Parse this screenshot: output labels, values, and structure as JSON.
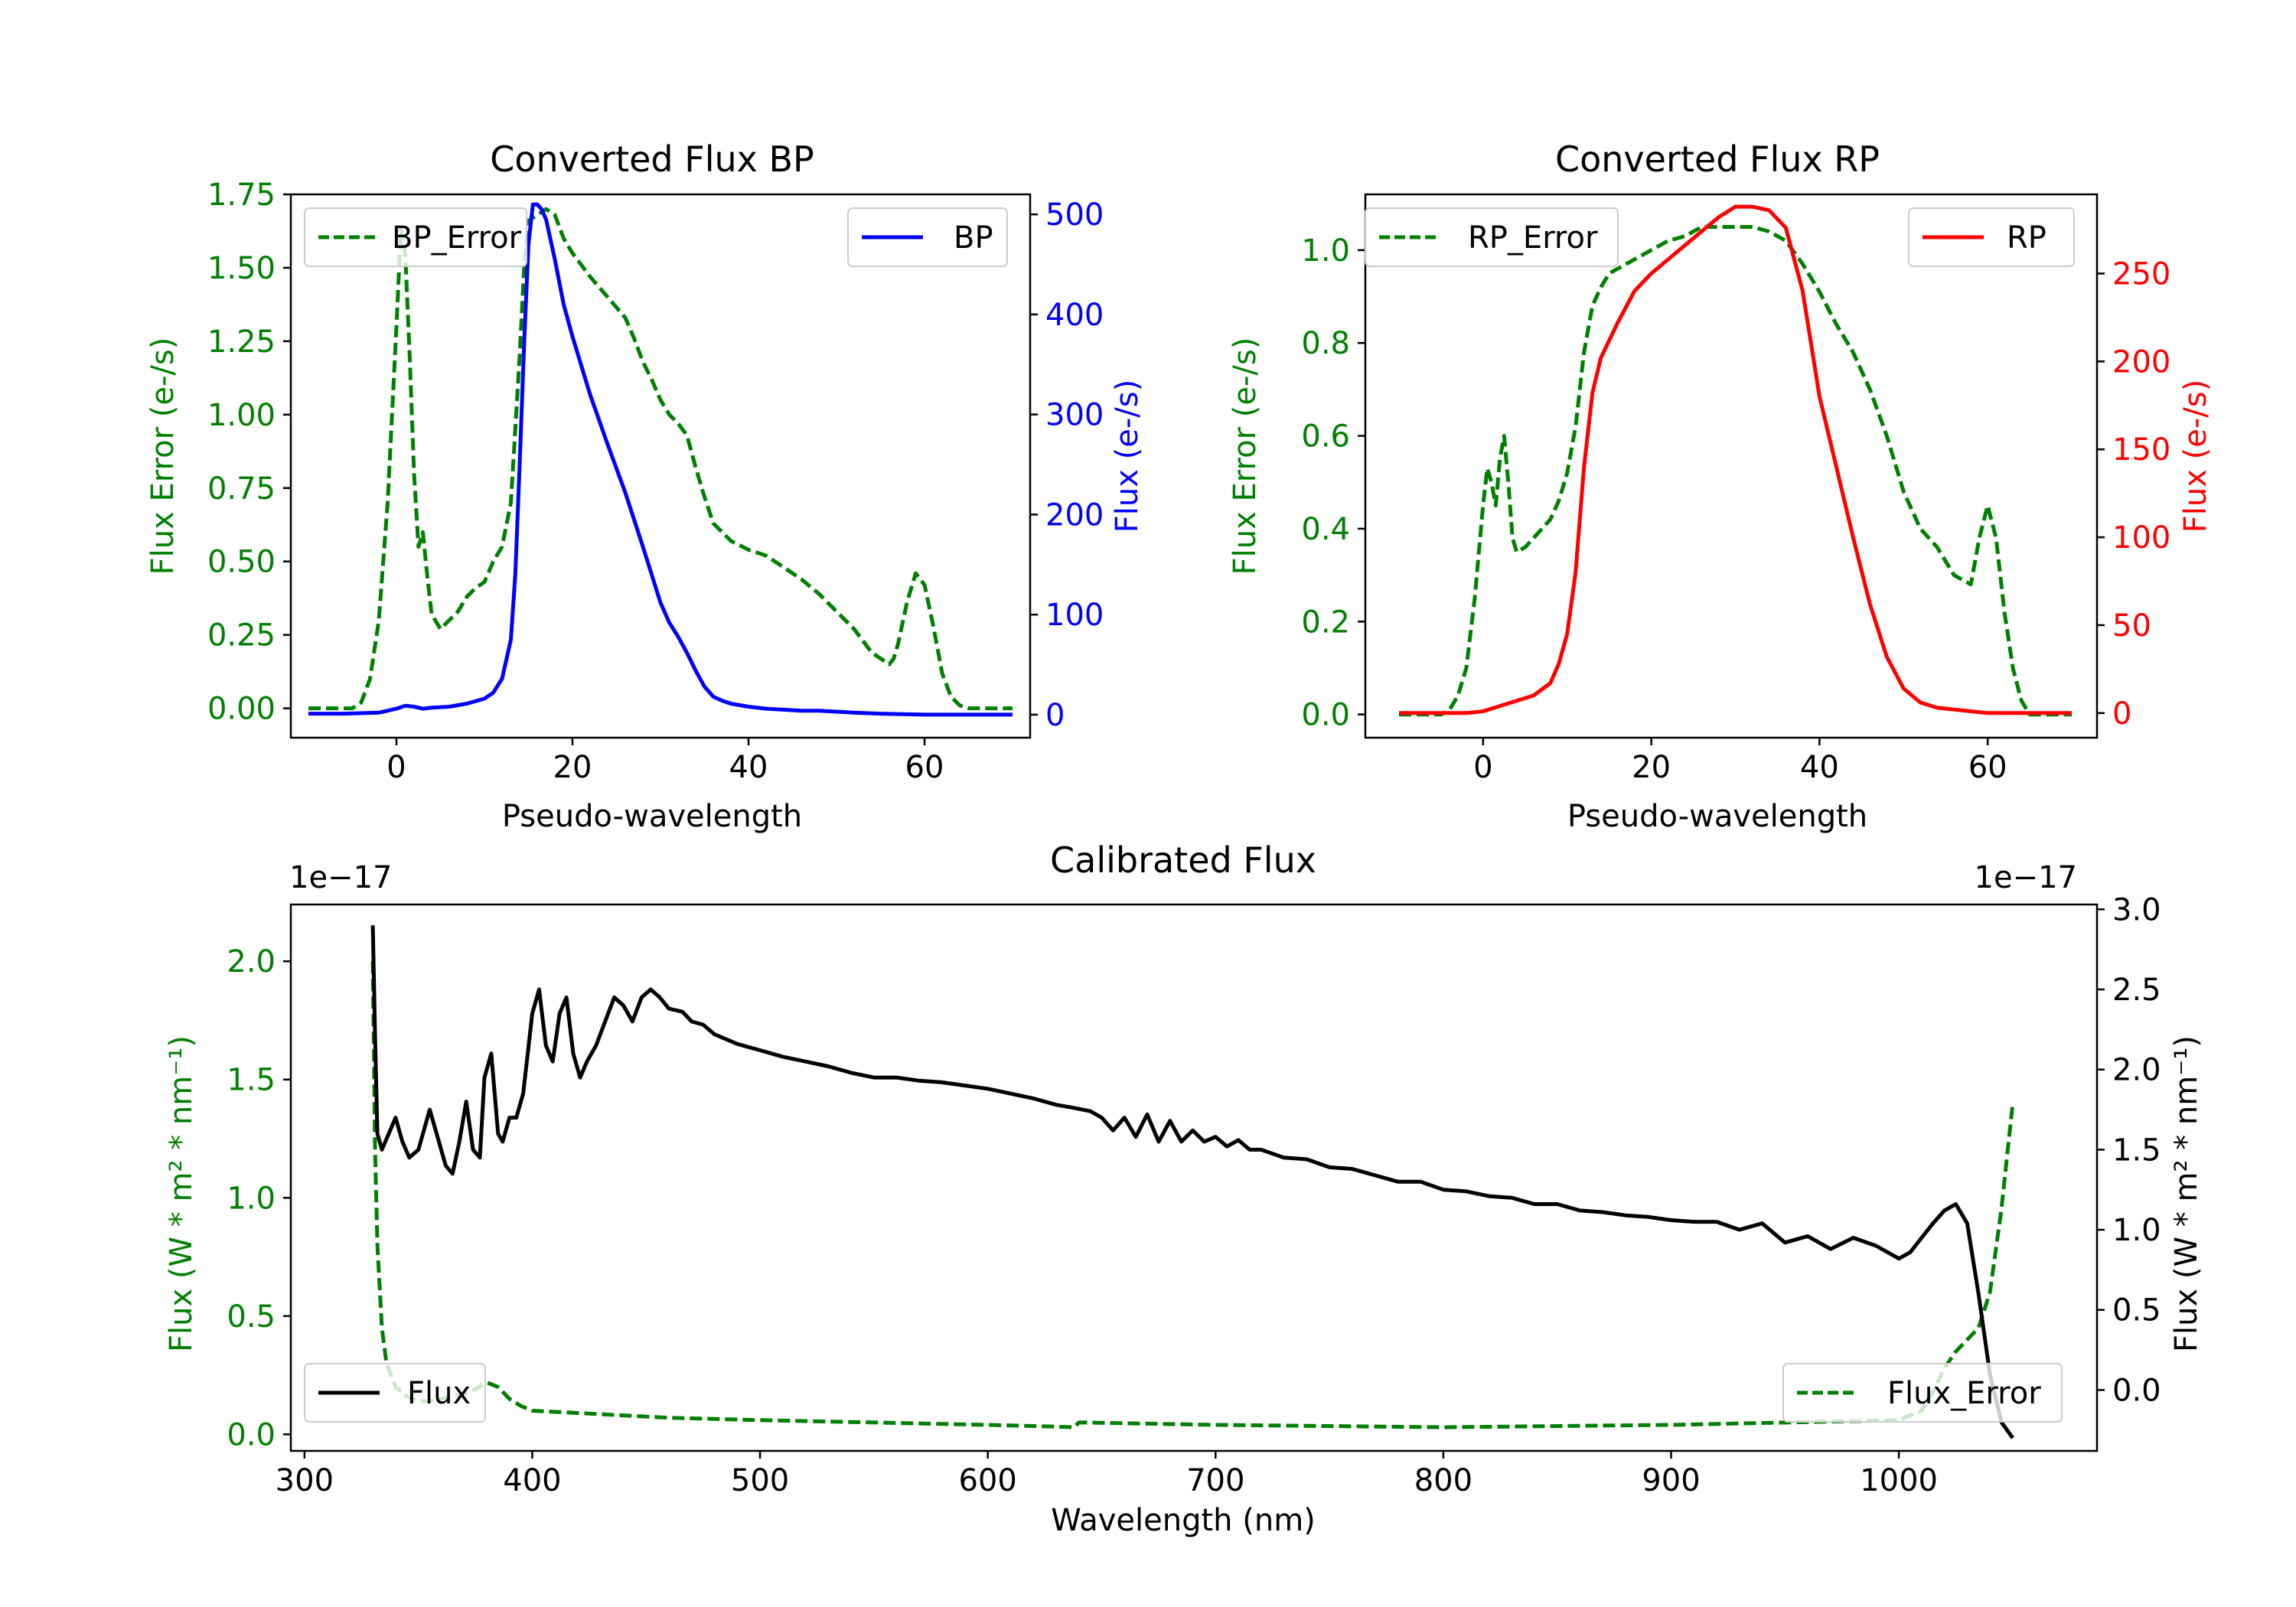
{
  "colors": {
    "green": "#008000",
    "blue": "#0000ff",
    "red": "#ff0000",
    "black": "#000000",
    "axis": "#000000"
  },
  "chart_data": [
    {
      "id": "bp",
      "type": "line",
      "title": "Converted Flux BP",
      "xlabel": "Pseudo-wavelength",
      "ylabel_left": "Flux Error (e-/s)",
      "ylabel_right": "Flux (e-/s)",
      "xlim": [
        -12,
        72
      ],
      "ylim_left": [
        -0.1,
        1.75
      ],
      "ylim_right": [
        -23,
        520
      ],
      "xticks": [
        0,
        20,
        40,
        60
      ],
      "yticks_left": [
        0.0,
        0.25,
        0.5,
        0.75,
        1.0,
        1.25,
        1.5,
        1.75
      ],
      "yticks_left_labels": [
        "0.00",
        "0.25",
        "0.50",
        "0.75",
        "1.00",
        "1.25",
        "1.50",
        "1.75"
      ],
      "yticks_right": [
        0,
        100,
        200,
        300,
        400,
        500
      ],
      "legend_left": "BP_Error",
      "legend_right": "BP",
      "series": [
        {
          "name": "BP_Error",
          "axis": "left",
          "color": "green",
          "dash": true,
          "x": [
            -10,
            -5,
            -4,
            -3,
            -2,
            -1,
            0,
            0.5,
            1,
            1.5,
            2,
            2.5,
            3,
            3.5,
            4,
            5,
            6,
            7,
            8,
            9,
            10,
            11,
            12,
            13,
            13.5,
            14,
            14.5,
            15,
            16,
            17,
            18,
            19,
            20,
            22,
            24,
            26,
            27,
            28,
            29,
            30,
            31,
            32,
            33,
            34,
            35,
            36,
            38,
            40,
            42,
            44,
            46,
            48,
            50,
            52,
            54,
            55,
            56,
            56.5,
            57,
            58,
            59,
            60,
            61,
            62,
            63,
            64,
            65,
            70
          ],
          "y": [
            0,
            0,
            0.02,
            0.1,
            0.3,
            0.7,
            1.3,
            1.63,
            1.55,
            1.2,
            0.8,
            0.55,
            0.6,
            0.45,
            0.32,
            0.27,
            0.3,
            0.33,
            0.38,
            0.41,
            0.43,
            0.5,
            0.55,
            0.7,
            0.95,
            1.2,
            1.5,
            1.66,
            1.68,
            1.7,
            1.68,
            1.6,
            1.55,
            1.47,
            1.4,
            1.33,
            1.26,
            1.18,
            1.12,
            1.05,
            1.0,
            0.97,
            0.93,
            0.82,
            0.72,
            0.63,
            0.57,
            0.54,
            0.52,
            0.48,
            0.44,
            0.39,
            0.33,
            0.27,
            0.19,
            0.17,
            0.15,
            0.17,
            0.22,
            0.36,
            0.46,
            0.42,
            0.28,
            0.12,
            0.04,
            0.01,
            0,
            0
          ]
        },
        {
          "name": "BP",
          "axis": "right",
          "color": "blue",
          "dash": false,
          "x": [
            -10,
            -6,
            -2,
            0,
            1,
            2,
            3,
            4,
            6,
            8,
            10,
            11,
            12,
            13,
            13.5,
            14,
            14.5,
            15,
            15.5,
            16,
            16.5,
            17,
            18,
            19,
            20,
            22,
            24,
            26,
            28,
            30,
            31,
            32,
            33,
            34,
            35,
            36,
            37,
            38,
            40,
            42,
            44,
            46,
            48,
            50,
            52,
            55,
            60,
            65,
            70
          ],
          "y": [
            1,
            1,
            2,
            6,
            9,
            8,
            6,
            7,
            8,
            11,
            16,
            22,
            36,
            75,
            140,
            250,
            370,
            470,
            510,
            510,
            505,
            495,
            455,
            410,
            378,
            320,
            270,
            222,
            168,
            112,
            92,
            78,
            62,
            44,
            28,
            18,
            14,
            11,
            8,
            6,
            5,
            4,
            4,
            3,
            2,
            1,
            0,
            0,
            0
          ]
        }
      ]
    },
    {
      "id": "rp",
      "type": "line",
      "title": "Converted Flux RP",
      "xlabel": "Pseudo-wavelength",
      "ylabel_left": "Flux Error (e-/s)",
      "ylabel_right": "Flux (e-/s)",
      "xlim": [
        -14,
        73
      ],
      "ylim_left": [
        -0.05,
        1.12
      ],
      "ylim_right": [
        -14,
        295
      ],
      "xticks": [
        0,
        20,
        40,
        60
      ],
      "yticks_left": [
        0.0,
        0.2,
        0.4,
        0.6,
        0.8,
        1.0
      ],
      "yticks_left_labels": [
        "0.0",
        "0.2",
        "0.4",
        "0.6",
        "0.8",
        "1.0"
      ],
      "yticks_right": [
        0,
        50,
        100,
        150,
        200,
        250
      ],
      "legend_left": "RP_Error",
      "legend_right": "RP",
      "series": [
        {
          "name": "RP_Error",
          "axis": "left",
          "color": "green",
          "dash": true,
          "x": [
            -10,
            -5,
            -4,
            -3,
            -2,
            -1,
            0,
            0.5,
            1,
            1.5,
            2,
            2.5,
            3,
            3.5,
            4,
            5,
            6,
            7,
            8,
            9,
            10,
            11,
            12,
            13,
            14,
            15,
            16,
            18,
            20,
            22,
            24,
            26,
            28,
            30,
            32,
            34,
            36,
            38,
            40,
            42,
            44,
            46,
            48,
            50,
            52,
            54,
            55,
            56,
            57,
            58,
            59,
            60,
            61,
            62,
            63,
            64,
            65,
            70
          ],
          "y": [
            0,
            0,
            0.01,
            0.04,
            0.1,
            0.25,
            0.45,
            0.53,
            0.5,
            0.45,
            0.55,
            0.6,
            0.5,
            0.38,
            0.35,
            0.36,
            0.38,
            0.4,
            0.42,
            0.46,
            0.52,
            0.62,
            0.78,
            0.88,
            0.92,
            0.95,
            0.96,
            0.98,
            1.0,
            1.02,
            1.03,
            1.05,
            1.05,
            1.05,
            1.05,
            1.04,
            1.02,
            0.97,
            0.91,
            0.84,
            0.78,
            0.7,
            0.6,
            0.48,
            0.4,
            0.36,
            0.33,
            0.3,
            0.29,
            0.28,
            0.38,
            0.45,
            0.38,
            0.22,
            0.1,
            0.03,
            0,
            0
          ]
        },
        {
          "name": "RP",
          "axis": "right",
          "color": "red",
          "dash": false,
          "x": [
            -10,
            -6,
            -2,
            0,
            2,
            4,
            6,
            8,
            9,
            10,
            11,
            12,
            13,
            14,
            15,
            16,
            18,
            20,
            22,
            24,
            26,
            28,
            30,
            32,
            34,
            36,
            38,
            40,
            42,
            44,
            46,
            48,
            50,
            52,
            54,
            56,
            58,
            60,
            62,
            64,
            66,
            70
          ],
          "y": [
            0,
            0,
            0,
            1,
            4,
            7,
            10,
            17,
            28,
            45,
            80,
            140,
            182,
            202,
            212,
            222,
            240,
            250,
            258,
            266,
            274,
            282,
            288,
            288,
            286,
            276,
            240,
            180,
            140,
            100,
            62,
            32,
            14,
            6,
            3,
            2,
            1,
            0,
            0,
            0,
            0,
            0
          ]
        }
      ]
    },
    {
      "id": "cal",
      "type": "line",
      "title": "Calibrated Flux",
      "xlabel": "Wavelength (nm)",
      "ylabel_left": "Flux (W * m² * nm⁻¹)",
      "ylabel_right": "Flux (W * m² * nm⁻¹)",
      "offset_left": "1e−17",
      "offset_right": "1e−17",
      "xlim": [
        294,
        1087
      ],
      "ylim_left": [
        -0.07,
        2.24
      ],
      "ylim_right": [
        -0.38,
        3.03
      ],
      "xticks": [
        300,
        400,
        500,
        600,
        700,
        800,
        900,
        1000
      ],
      "yticks_left": [
        0.0,
        0.5,
        1.0,
        1.5,
        2.0
      ],
      "yticks_left_labels": [
        "0.0",
        "0.5",
        "1.0",
        "1.5",
        "2.0"
      ],
      "yticks_right": [
        0.0,
        0.5,
        1.0,
        1.5,
        2.0,
        2.5,
        3.0
      ],
      "yticks_right_labels": [
        "0.0",
        "0.5",
        "1.0",
        "1.5",
        "2.0",
        "2.5",
        "3.0"
      ],
      "legend_left": "Flux",
      "legend_right": "Flux_Error",
      "series": [
        {
          "name": "Flux_Error",
          "axis": "left",
          "color": "green",
          "dash": true,
          "x": [
            330,
            331,
            332,
            334,
            336,
            340,
            345,
            350,
            355,
            360,
            365,
            370,
            375,
            380,
            385,
            390,
            395,
            400,
            420,
            440,
            460,
            500,
            550,
            600,
            620,
            638,
            640,
            642,
            700,
            800,
            900,
            1000,
            1010,
            1015,
            1020,
            1025,
            1030,
            1035,
            1040,
            1045,
            1050
          ],
          "y": [
            2.0,
            1.2,
            0.8,
            0.45,
            0.3,
            0.2,
            0.16,
            0.14,
            0.14,
            0.15,
            0.16,
            0.17,
            0.19,
            0.22,
            0.2,
            0.15,
            0.12,
            0.1,
            0.09,
            0.08,
            0.07,
            0.06,
            0.05,
            0.04,
            0.035,
            0.03,
            0.05,
            0.05,
            0.04,
            0.03,
            0.04,
            0.06,
            0.1,
            0.18,
            0.28,
            0.35,
            0.4,
            0.45,
            0.6,
            0.95,
            1.4
          ]
        },
        {
          "name": "Flux",
          "axis": "right",
          "color": "black",
          "dash": false,
          "x": [
            330,
            331,
            332,
            334,
            337,
            340,
            343,
            346,
            350,
            355,
            358,
            362,
            365,
            368,
            371,
            374,
            377,
            379,
            382,
            385,
            387,
            390,
            393,
            396,
            400,
            403,
            406,
            409,
            412,
            415,
            418,
            421,
            424,
            428,
            432,
            436,
            440,
            444,
            448,
            452,
            456,
            460,
            466,
            470,
            475,
            480,
            490,
            500,
            510,
            520,
            530,
            540,
            550,
            560,
            570,
            580,
            590,
            600,
            610,
            620,
            630,
            638,
            645,
            650,
            655,
            660,
            665,
            670,
            675,
            680,
            685,
            690,
            695,
            700,
            705,
            710,
            715,
            720,
            730,
            740,
            750,
            760,
            770,
            780,
            790,
            800,
            810,
            820,
            830,
            840,
            850,
            860,
            870,
            880,
            890,
            900,
            910,
            920,
            930,
            940,
            950,
            960,
            970,
            980,
            990,
            1000,
            1005,
            1010,
            1015,
            1020,
            1025,
            1030,
            1035,
            1040,
            1045,
            1050
          ],
          "y": [
            2.9,
            2.2,
            1.6,
            1.5,
            1.6,
            1.7,
            1.55,
            1.45,
            1.5,
            1.75,
            1.6,
            1.4,
            1.35,
            1.55,
            1.8,
            1.5,
            1.45,
            1.95,
            2.1,
            1.6,
            1.55,
            1.7,
            1.7,
            1.85,
            2.35,
            2.5,
            2.15,
            2.05,
            2.35,
            2.45,
            2.1,
            1.95,
            2.05,
            2.15,
            2.3,
            2.45,
            2.4,
            2.3,
            2.45,
            2.5,
            2.45,
            2.38,
            2.36,
            2.3,
            2.28,
            2.22,
            2.16,
            2.12,
            2.08,
            2.05,
            2.02,
            1.98,
            1.95,
            1.95,
            1.93,
            1.92,
            1.9,
            1.88,
            1.85,
            1.82,
            1.78,
            1.76,
            1.74,
            1.7,
            1.62,
            1.7,
            1.58,
            1.72,
            1.55,
            1.68,
            1.55,
            1.62,
            1.55,
            1.58,
            1.52,
            1.56,
            1.5,
            1.5,
            1.45,
            1.44,
            1.39,
            1.38,
            1.34,
            1.3,
            1.3,
            1.25,
            1.24,
            1.21,
            1.2,
            1.16,
            1.16,
            1.12,
            1.11,
            1.09,
            1.08,
            1.06,
            1.05,
            1.05,
            1.0,
            1.04,
            0.92,
            0.96,
            0.88,
            0.95,
            0.9,
            0.82,
            0.86,
            0.95,
            1.04,
            1.12,
            1.16,
            1.04,
            0.6,
            0.1,
            -0.2,
            -0.3
          ]
        }
      ]
    }
  ]
}
